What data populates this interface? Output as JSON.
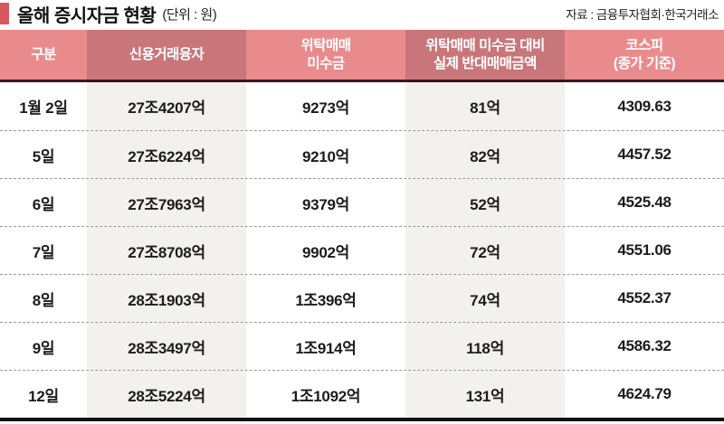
{
  "title": {
    "text": "올해 증시자금 현황",
    "unit": "(단위 : 원)",
    "source": "자료 : 금융투자협회·한국거래소"
  },
  "colors": {
    "accent_bar": "#d65860",
    "header_light": "#e98b8d",
    "header_dark": "#c9767a",
    "shaded_column": "#f2f1ee",
    "header_divider": "#3a191c",
    "bottom_rule": "#101010"
  },
  "table": {
    "headers": [
      "구분",
      "신용거래융자",
      "위탁매매\n미수금",
      "위탁매매 미수금 대비\n실제 반대매매금액",
      "코스피\n(종가 기준)"
    ],
    "rows": [
      [
        "1월 2일",
        "27조4207억",
        "9273억",
        "81억",
        "4309.63"
      ],
      [
        "5일",
        "27조6224억",
        "9210억",
        "82억",
        "4457.52"
      ],
      [
        "6일",
        "27조7963억",
        "9379억",
        "52억",
        "4525.48"
      ],
      [
        "7일",
        "27조8708억",
        "9902억",
        "72억",
        "4551.06"
      ],
      [
        "8일",
        "28조1903억",
        "1조396억",
        "74억",
        "4552.37"
      ],
      [
        "9일",
        "28조3497억",
        "1조914억",
        "118억",
        "4586.32"
      ],
      [
        "12일",
        "28조5224억",
        "1조1092억",
        "131억",
        "4624.79"
      ]
    ]
  },
  "chart_data": {
    "type": "table",
    "title": "올해 증시자금 현황 (단위 : 원)",
    "source": "자료 : 금융투자협회·한국거래소",
    "columns": [
      "구분",
      "신용거래융자",
      "위탁매매 미수금",
      "위탁매매 미수금 대비 실제 반대매매금액",
      "코스피 (종가 기준)"
    ],
    "rows": [
      [
        "1월 2일",
        "27조4207억",
        "9273억",
        "81억",
        "4309.63"
      ],
      [
        "5일",
        "27조6224억",
        "9210억",
        "82억",
        "4457.52"
      ],
      [
        "6일",
        "27조7963억",
        "9379억",
        "52억",
        "4525.48"
      ],
      [
        "7일",
        "27조8708억",
        "9902억",
        "72억",
        "4551.06"
      ],
      [
        "8일",
        "28조1903억",
        "1조396억",
        "74억",
        "4552.37"
      ],
      [
        "9일",
        "28조3497억",
        "1조914억",
        "118억",
        "4586.32"
      ],
      [
        "12일",
        "28조5224억",
        "1조1092억",
        "131억",
        "4624.79"
      ]
    ],
    "kospi_close": [
      4309.63,
      4457.52,
      4525.48,
      4551.06,
      4552.37,
      4586.32,
      4624.79
    ],
    "liquidation_vs_outstanding_eok": [
      81,
      82,
      52,
      72,
      74,
      118,
      131
    ]
  }
}
